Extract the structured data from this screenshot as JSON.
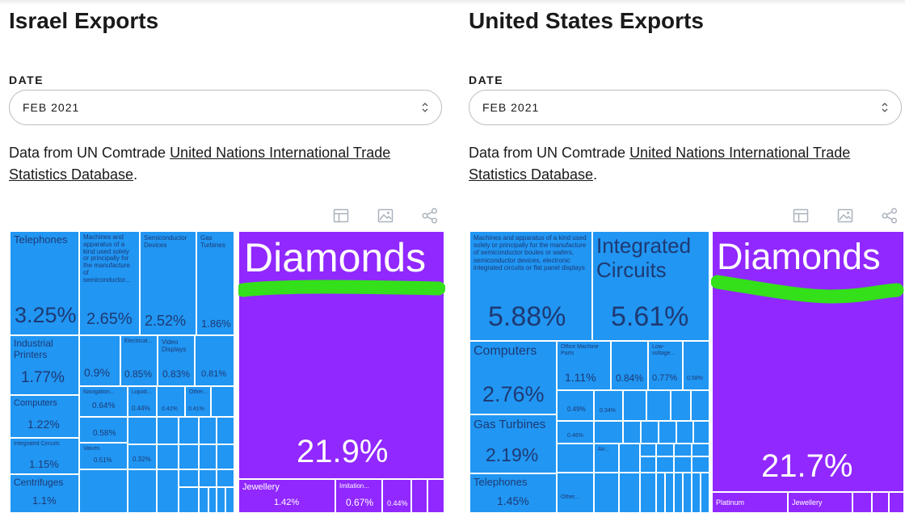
{
  "panels": [
    {
      "title": "Israel Exports",
      "date_label": "DATE",
      "date_value": "FEB 2021",
      "source_prefix": "Data from UN Comtrade ",
      "source_link": "United Nations International Trade Statistics Database",
      "source_suffix": ".",
      "icons": [
        "table-icon",
        "image-icon",
        "share-icon"
      ],
      "tiles": [
        {
          "name": "Telephones",
          "value": "3.25%"
        },
        {
          "name": "Machines and apparatus of a kind used solely or principally for the manufacture of semiconductor...",
          "value": "2.65%"
        },
        {
          "name": "Semiconductor Devices",
          "value": "2.52%"
        },
        {
          "name": "Gas Turbines",
          "value": "1.86%"
        },
        {
          "name": "Industrial Printers",
          "value": "1.77%"
        },
        {
          "name": "",
          "value": "0.9%"
        },
        {
          "name": "Electrical...",
          "value": "0.85%"
        },
        {
          "name": "Video Displays",
          "value": "0.83%"
        },
        {
          "name": "",
          "value": "0.81%"
        },
        {
          "name": "Computers",
          "value": "1.22%"
        },
        {
          "name": "Navigation...",
          "value": "0.64%"
        },
        {
          "name": "Liquid...",
          "value": "0.44%"
        },
        {
          "name": "",
          "value": "0.42%"
        },
        {
          "name": "Other...",
          "value": "0.41%"
        },
        {
          "name": "",
          "value": "0.58%"
        },
        {
          "name": "Integrated Circuits",
          "value": "1.15%"
        },
        {
          "name": "Valves",
          "value": "0.51%"
        },
        {
          "name": "",
          "value": "0.32%"
        },
        {
          "name": "Centrifuges",
          "value": "1.1%"
        },
        {
          "name": "Diamonds",
          "value": "21.9%"
        },
        {
          "name": "Jewellery",
          "value": "1.42%"
        },
        {
          "name": "Imitation...",
          "value": "0.67%"
        },
        {
          "name": "",
          "value": "0.44%"
        }
      ]
    },
    {
      "title": "United States Exports",
      "date_label": "DATE",
      "date_value": "FEB 2021",
      "source_prefix": "Data from UN Comtrade ",
      "source_link": "United Nations International Trade Statistics Database",
      "source_suffix": ".",
      "icons": [
        "table-icon",
        "image-icon",
        "share-icon"
      ],
      "tiles": [
        {
          "name": "Machines and apparatus of a kind used solely or principally for the manufacture of semiconductor boules or wafers, semiconductor devices, electronic integrated circuits or flat panel displays",
          "value": "5.88%"
        },
        {
          "name": "Integrated Circuits",
          "value": "5.61%"
        },
        {
          "name": "Computers",
          "value": "2.76%"
        },
        {
          "name": "Office Machine Parts",
          "value": "1.11%"
        },
        {
          "name": "",
          "value": "0.84%"
        },
        {
          "name": "Low-voltage...",
          "value": "0.77%"
        },
        {
          "name": "",
          "value": "0.58%"
        },
        {
          "name": "",
          "value": "0.49%"
        },
        {
          "name": "",
          "value": "0.34%"
        },
        {
          "name": "Gas Turbines",
          "value": "2.19%"
        },
        {
          "name": "",
          "value": "0.46%"
        },
        {
          "name": "Air...",
          "value": ""
        },
        {
          "name": "Telephones",
          "value": "1.45%"
        },
        {
          "name": "Other...",
          "value": ""
        },
        {
          "name": "Diamonds",
          "value": "21.7%"
        },
        {
          "name": "Platinum",
          "value": ""
        },
        {
          "name": "Jewellery",
          "value": ""
        }
      ]
    }
  ],
  "colors": {
    "tile_blue": "#2196f3",
    "tile_purple": "#9128ff",
    "highlight_stroke": "#33e019"
  }
}
